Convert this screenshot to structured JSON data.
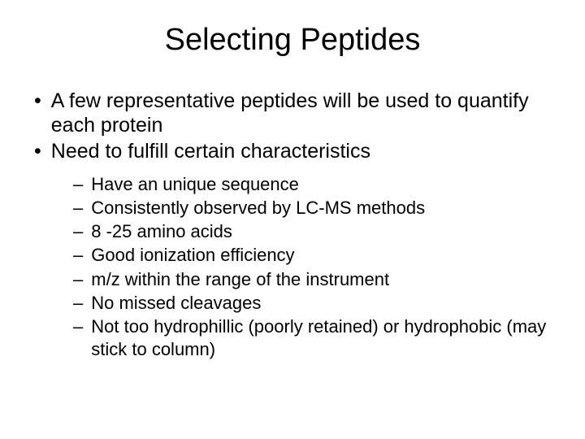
{
  "title": "Selecting Peptides",
  "main_bullets": [
    "A few representative peptides will be used to quantify each protein",
    "Need to fulfill certain characteristics"
  ],
  "sub_bullets": [
    "Have an unique sequence",
    "Consistently observed by LC-MS methods",
    "8 -25 amino acids",
    "Good ionization efficiency",
    "m/z within the range of the instrument",
    "No missed cleavages",
    "Not too hydrophillic (poorly retained) or hydrophobic (may stick to column)"
  ],
  "colors": {
    "background": "#ffffff",
    "text": "#000000"
  },
  "typography": {
    "title_fontsize": 38,
    "main_fontsize": 25,
    "sub_fontsize": 22,
    "font_family": "Arial"
  }
}
